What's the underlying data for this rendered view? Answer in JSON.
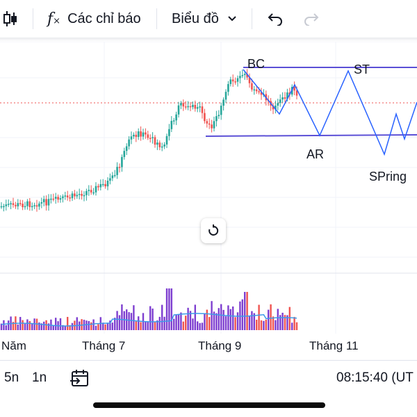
{
  "toolbar": {
    "indicators_label": "Các chỉ báo",
    "chart_type_label": "Biểu đồ",
    "icons": [
      "candles-icon",
      "fx-icon",
      "chevron-down-icon",
      "undo-icon",
      "redo-icon"
    ]
  },
  "chart_data": {
    "type": "candlestick",
    "x_ticks": [
      "Năm",
      "Tháng 7",
      "Tháng 9",
      "Tháng 11"
    ],
    "annotations": [
      "BC",
      "ST",
      "AR",
      "SPring"
    ],
    "colors": {
      "up": "#26a69a",
      "down": "#ef5350",
      "wyckoff_line": "#2962ff",
      "range_line": "#5b4fd6",
      "volume_purple": "#7e3fd0",
      "ma": "#3d9be9",
      "price_line": "#ef5350"
    },
    "trend": "uptrend then sideways accumulation range",
    "grid": true
  },
  "bottom": {
    "range_5n": "5n",
    "range_1n": "1n",
    "time": "08:15:40 (UT"
  }
}
